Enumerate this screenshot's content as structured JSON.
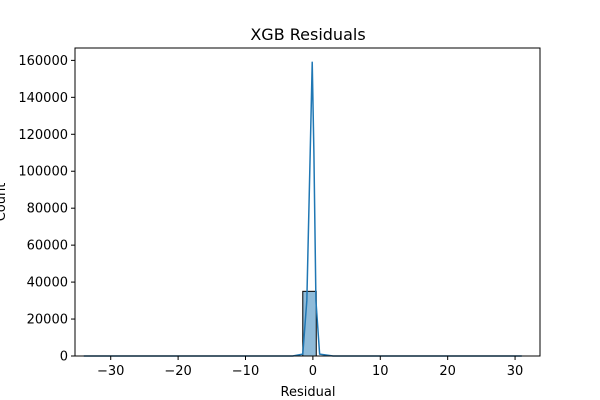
{
  "chart_data": {
    "type": "bar",
    "title": "XGB Residuals",
    "xlabel": "Residual",
    "ylabel": "Count",
    "xlim": [
      -35.3,
      33.7
    ],
    "ylim": [
      0,
      166700
    ],
    "x_ticks": [
      -30,
      -20,
      -10,
      0,
      10,
      20,
      30
    ],
    "x_tick_labels": [
      "−30",
      "−20",
      "−10",
      "0",
      "10",
      "20",
      "30"
    ],
    "y_ticks": [
      0,
      20000,
      40000,
      60000,
      80000,
      100000,
      120000,
      140000,
      160000
    ],
    "y_tick_labels": [
      "0",
      "20000",
      "40000",
      "60000",
      "80000",
      "100000",
      "120000",
      "140000",
      "160000"
    ],
    "grid": false,
    "series": [
      {
        "kind": "histogram",
        "bins": [
          {
            "x0": -1.5,
            "x1": 0.5,
            "count": 35000
          }
        ],
        "color": "#1f77b4",
        "fill_opacity": 0.5
      },
      {
        "kind": "kde",
        "x": [
          -34,
          -10,
          -3,
          -1.5,
          -0.9,
          -0.4,
          -0.1,
          0.15,
          0.45,
          1.0,
          3,
          10,
          31
        ],
        "y": [
          0,
          0,
          0,
          1000,
          30000,
          110000,
          159000,
          110000,
          30000,
          1000,
          0,
          0,
          0
        ],
        "color": "#1f77b4"
      }
    ]
  }
}
